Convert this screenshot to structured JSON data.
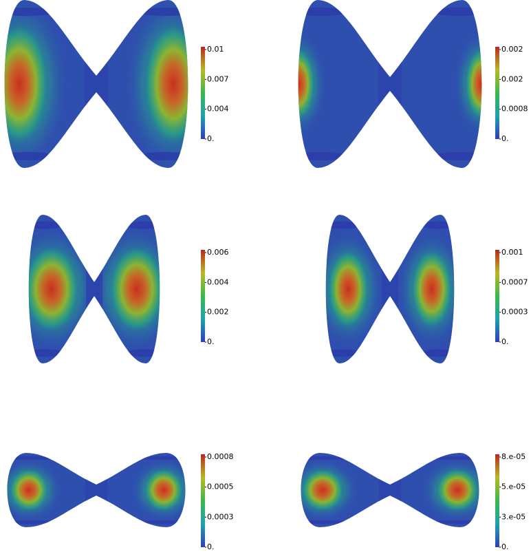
{
  "panels": [
    {
      "colorbar_labels": [
        "0.01",
        "0.007",
        "0.004",
        "0."
      ]
    },
    {
      "colorbar_labels": [
        "0.002",
        "0.002",
        "0.0008",
        "0."
      ]
    },
    {
      "colorbar_labels": [
        "0.006",
        "0.004",
        "0.002",
        "0."
      ]
    },
    {
      "colorbar_labels": [
        "0.001",
        "0.0007",
        "0.0003",
        "0."
      ]
    },
    {
      "colorbar_labels": [
        "0.0008",
        "0.0005",
        "0.0003",
        "0."
      ]
    },
    {
      "colorbar_labels": [
        "8.e-05",
        "5.e-05",
        "3.e-05",
        "0."
      ]
    }
  ]
}
